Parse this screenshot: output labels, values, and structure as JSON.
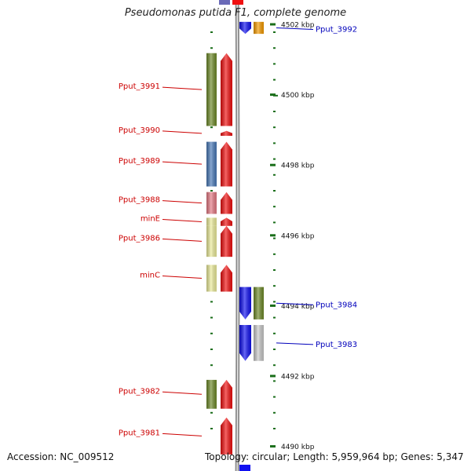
{
  "title": "Pseudomonas putida F1, complete genome",
  "footer": {
    "accession": "Accession: NC_009512",
    "summary": "Topology: circular; Length: 5,959,964 bp; Genes: 5,347"
  },
  "colors": {
    "backbone": "#8a8a8a",
    "reverse_label": "#cc0000",
    "forward_label": "#0000bb",
    "tick": "#1a6e1a",
    "coordinate_label": "#111111"
  },
  "coordinates": [
    {
      "label": "4502 kbp",
      "kbp": 4502
    },
    {
      "label": "4500 kbp",
      "kbp": 4500
    },
    {
      "label": "4498 kbp",
      "kbp": 4498
    },
    {
      "label": "4496 kbp",
      "kbp": 4496
    },
    {
      "label": "4494 kbp",
      "kbp": 4494
    },
    {
      "label": "4492 kbp",
      "kbp": 4492
    },
    {
      "label": "4490 kbp",
      "kbp": 4490
    }
  ],
  "genes": [
    {
      "strand": "forward",
      "label": "Pput_3992",
      "cog_color": "#f59a00",
      "arrow_color": "#1010f0",
      "start_kbp": 4501.73,
      "end_kbp": 4502.07
    },
    {
      "strand": "reverse",
      "label": "Pput_3991",
      "cog_color": "#6e8a2a",
      "arrow_color": "#f01010",
      "start_kbp": 4501.18,
      "end_kbp": 4499.11
    },
    {
      "strand": "reverse",
      "label": "Pput_3990",
      "cog_color": "",
      "arrow_color": "#f01010",
      "start_kbp": 4498.97,
      "end_kbp": 4498.83
    },
    {
      "strand": "reverse",
      "label": "Pput_3989",
      "cog_color": "#4a7ab8",
      "arrow_color": "#f01010",
      "start_kbp": 4498.66,
      "end_kbp": 4497.39
    },
    {
      "strand": "reverse",
      "label": "Pput_3988",
      "cog_color": "#e57a84",
      "arrow_color": "#f01010",
      "start_kbp": 4497.23,
      "end_kbp": 4496.61
    },
    {
      "strand": "reverse",
      "label": "minE",
      "cog_color": "#ecec9a",
      "arrow_color": "#f01010",
      "start_kbp": 4496.5,
      "end_kbp": 4496.27
    },
    {
      "strand": "reverse",
      "label": "Pput_3986",
      "cog_color": "#ecec9a",
      "arrow_color": "#f01010",
      "start_kbp": 4496.27,
      "end_kbp": 4495.39
    },
    {
      "strand": "reverse",
      "label": "minC",
      "cog_color": "#ecec9a",
      "arrow_color": "#f01010",
      "start_kbp": 4495.16,
      "end_kbp": 4494.4
    },
    {
      "strand": "forward",
      "label": "Pput_3984",
      "cog_color": "#6e8a2a",
      "arrow_color": "#1010f0",
      "start_kbp": 4493.61,
      "end_kbp": 4494.53
    },
    {
      "strand": "forward",
      "label": "Pput_3983",
      "cog_color": "#c8c8c8",
      "arrow_color": "#1010f0",
      "start_kbp": 4492.43,
      "end_kbp": 4493.45
    },
    {
      "strand": "reverse",
      "label": "Pput_3982",
      "cog_color": "#6e8a2a",
      "arrow_color": "#f01010",
      "start_kbp": 4491.89,
      "end_kbp": 4491.07
    },
    {
      "strand": "reverse",
      "label": "Pput_3981",
      "cog_color": "",
      "arrow_color": "#f01010",
      "start_kbp": 4490.82,
      "end_kbp": 4489.77
    }
  ]
}
